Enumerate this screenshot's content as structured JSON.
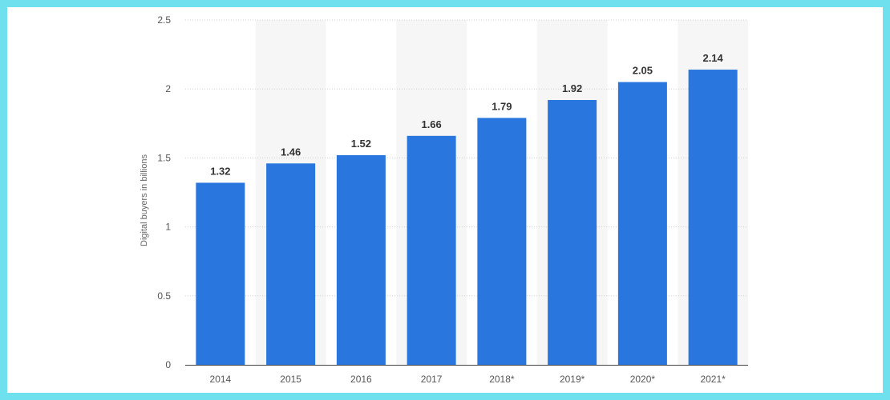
{
  "chart_data": {
    "type": "bar",
    "categories": [
      "2014",
      "2015",
      "2016",
      "2017",
      "2018*",
      "2019*",
      "2020*",
      "2021*"
    ],
    "values": [
      1.32,
      1.46,
      1.52,
      1.66,
      1.79,
      1.92,
      2.05,
      2.14
    ],
    "value_labels": [
      "1.32",
      "1.46",
      "1.52",
      "1.66",
      "1.79",
      "1.92",
      "2.05",
      "2.14"
    ],
    "title": "",
    "xlabel": "",
    "ylabel": "Digital buyers in billions",
    "ylim": [
      0,
      2.5
    ],
    "yticks": [
      0,
      0.5,
      1,
      1.5,
      2,
      2.5
    ],
    "ytick_labels": [
      "0",
      "0.5",
      "1",
      "1.5",
      "2",
      "2.5"
    ],
    "grid": true,
    "bar_color": "#2876de",
    "frame_color": "#6fe0ee"
  }
}
